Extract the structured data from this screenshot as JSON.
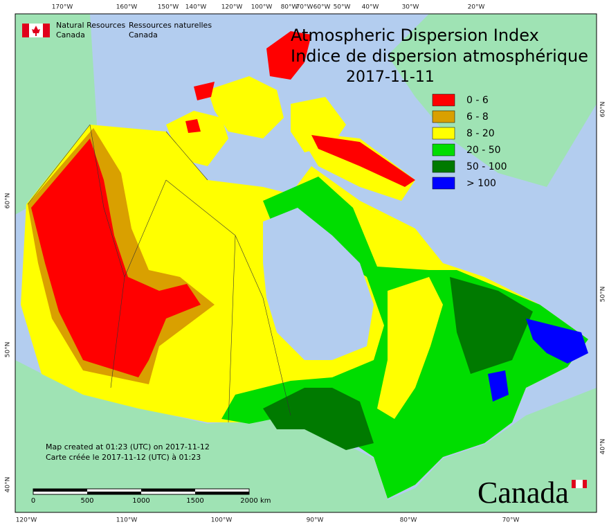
{
  "header": {
    "agency_en": "Natural Resources",
    "agency_en_2": "Canada",
    "agency_fr": "Ressources naturelles",
    "agency_fr_2": "Canada"
  },
  "title": {
    "en": "Atmospheric Dispersion Index",
    "fr": "Indice de dispersion atmosphérique",
    "date": "2017-11-11"
  },
  "legend": [
    {
      "label": "0 - 6",
      "color": "#ff0000"
    },
    {
      "label": "6 - 8",
      "color": "#d9a000"
    },
    {
      "label": "8 - 20",
      "color": "#ffff00"
    },
    {
      "label": "20 - 50",
      "color": "#00dd00"
    },
    {
      "label": "50 - 100",
      "color": "#007a00"
    },
    {
      "label": "> 100",
      "color": "#0000ff"
    }
  ],
  "top_longitudes": [
    "170°W",
    "160°W",
    "150°W",
    "140°W",
    "120°W",
    "100°W",
    "80°W",
    "70°W",
    "60°W",
    "50°W",
    "40°W",
    "30°W",
    "20°W"
  ],
  "bottom_longitudes": [
    "120°W",
    "110°W",
    "100°W",
    "90°W",
    "80°W",
    "70°W"
  ],
  "left_latitudes": [
    "60°N",
    "50°N",
    "40°N"
  ],
  "right_latitudes": [
    "60°N",
    "50°N",
    "40°N"
  ],
  "notes": [
    "Map created at 01:23 (UTC) on 2017-11-12",
    "Carte créée le 2017-11-12 (UTC) à 01:23"
  ],
  "scale_bar": {
    "labels": [
      "0",
      "500",
      "1000",
      "1500",
      "2000"
    ],
    "unit": "km"
  },
  "wordmark": "Canada"
}
